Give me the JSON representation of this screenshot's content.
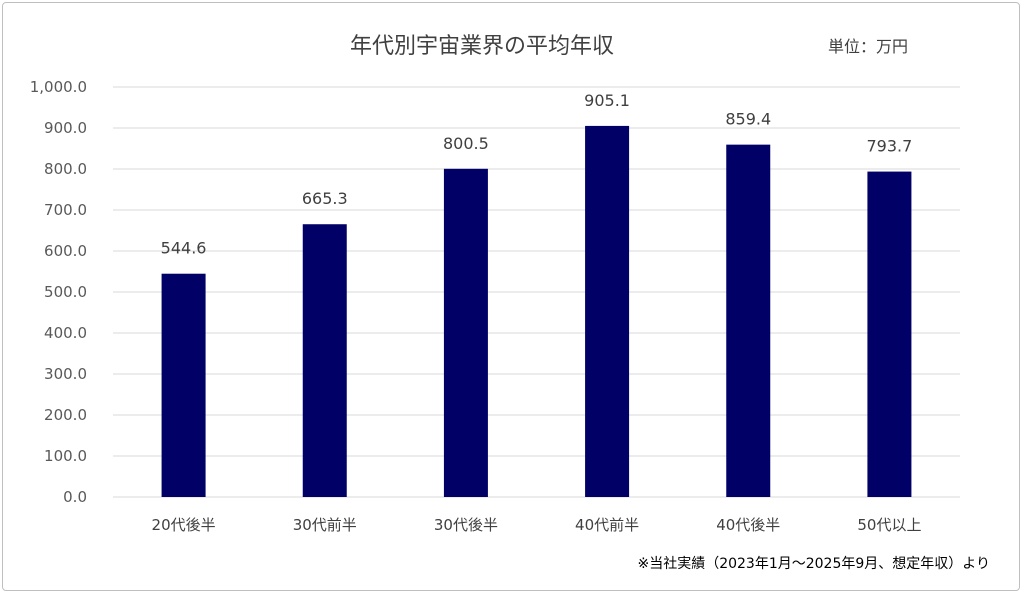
{
  "chart_data": {
    "type": "bar",
    "title": "年代別宇宙業界の平均年収",
    "unit_label": "単位：万円",
    "categories": [
      "20代後半",
      "30代前半",
      "30代後半",
      "40代前半",
      "40代後半",
      "50代以上"
    ],
    "values": [
      544.6,
      665.3,
      800.5,
      905.1,
      859.4,
      793.7
    ],
    "value_labels": [
      "544.6",
      "665.3",
      "800.5",
      "905.1",
      "859.4",
      "793.7"
    ],
    "ylim": [
      0,
      1000
    ],
    "yticks": [
      0,
      100,
      200,
      300,
      400,
      500,
      600,
      700,
      800,
      900,
      1000
    ],
    "ytick_labels": [
      "0.0",
      "100.0",
      "200.0",
      "300.0",
      "400.0",
      "500.0",
      "600.0",
      "700.0",
      "800.0",
      "900.0",
      "1,000.0"
    ],
    "grid": true,
    "bar_color": "#000066",
    "grid_color": "#d9d9d9",
    "note": "※当社実績（2023年1月～2025年9月、想定年収）より"
  }
}
